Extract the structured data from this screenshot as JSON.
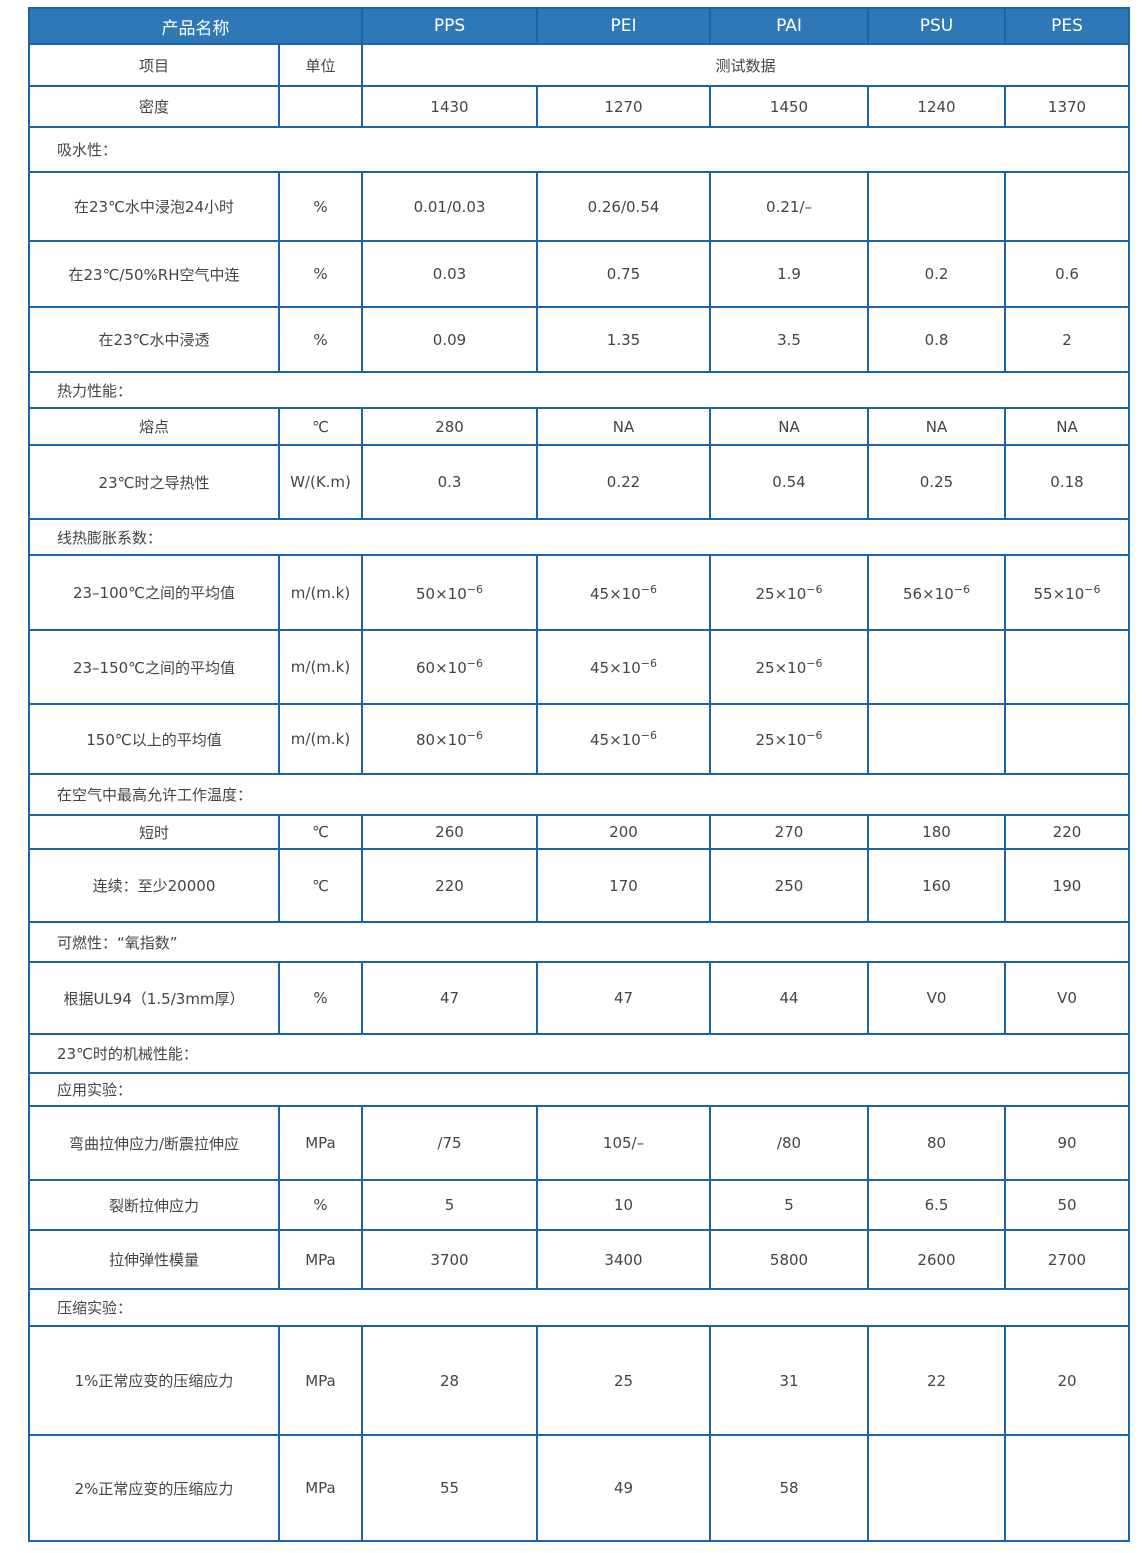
{
  "header": {
    "name_label": "产品名称",
    "materials": [
      "PPS",
      "PEI",
      "PAI",
      "PSU",
      "PES"
    ]
  },
  "subheader": {
    "item_label": "项目",
    "unit_label": "单位",
    "data_label": "测试数据"
  },
  "rows": [
    {
      "type": "data",
      "item": "密度",
      "unit": "",
      "values": [
        "1430",
        "1270",
        "1450",
        "1240",
        "1370"
      ]
    },
    {
      "type": "section",
      "label": "吸水性："
    },
    {
      "type": "data",
      "item": "在23℃水中浸泡24小时",
      "unit": "%",
      "values": [
        "0.01/0.03",
        "0.26/0.54",
        "0.21/–",
        "",
        ""
      ]
    },
    {
      "type": "data",
      "item": "在23℃/50%RH空气中连",
      "unit": "%",
      "values": [
        "0.03",
        "0.75",
        "1.9",
        "0.2",
        "0.6"
      ]
    },
    {
      "type": "data",
      "item": "在23℃水中浸透",
      "unit": "%",
      "values": [
        "0.09",
        "1.35",
        "3.5",
        "0.8",
        "2"
      ]
    },
    {
      "type": "section",
      "label": "热力性能："
    },
    {
      "type": "data",
      "item": "熔点",
      "unit": "℃",
      "values": [
        "280",
        "NA",
        "NA",
        "NA",
        "NA"
      ]
    },
    {
      "type": "data",
      "item": "23℃时之导热性",
      "unit": "W/(K.m)",
      "values": [
        "0.3",
        "0.22",
        "0.54",
        "0.25",
        "0.18"
      ]
    },
    {
      "type": "section",
      "label": "线热膨胀系数："
    },
    {
      "type": "data",
      "item": "23–100℃之间的平均值",
      "unit": "m/(m.k)",
      "values": [
        {
          "base": "50×10",
          "exp": "−6"
        },
        {
          "base": "45×10",
          "exp": "−6"
        },
        {
          "base": "25×10",
          "exp": "−6"
        },
        {
          "base": "56×10",
          "exp": "−6"
        },
        {
          "base": "55×10",
          "exp": "−6"
        }
      ]
    },
    {
      "type": "data",
      "item": "23–150℃之间的平均值",
      "unit": "m/(m.k)",
      "values": [
        {
          "base": "60×10",
          "exp": "−6"
        },
        {
          "base": "45×10",
          "exp": "−6"
        },
        {
          "base": "25×10",
          "exp": "−6"
        },
        "",
        ""
      ]
    },
    {
      "type": "data",
      "item": "150℃以上的平均值",
      "unit": "m/(m.k)",
      "values": [
        {
          "base": "80×10",
          "exp": "−6"
        },
        {
          "base": "45×10",
          "exp": "−6"
        },
        {
          "base": "25×10",
          "exp": "−6"
        },
        "",
        ""
      ]
    },
    {
      "type": "section",
      "label": "在空气中最高允许工作温度："
    },
    {
      "type": "data",
      "item": "短时",
      "unit": "℃",
      "values": [
        "260",
        "200",
        "270",
        "180",
        "220"
      ]
    },
    {
      "type": "data",
      "item": "连续：至少20000",
      "unit": "℃",
      "values": [
        "220",
        "170",
        "250",
        "160",
        "190"
      ]
    },
    {
      "type": "section",
      "label": "可燃性：“氧指数”"
    },
    {
      "type": "data",
      "item": "根据UL94（1.5/3mm厚）",
      "unit": "%",
      "values": [
        "47",
        "47",
        "44",
        "V0",
        "V0"
      ]
    },
    {
      "type": "section",
      "label": "23℃时的机械性能："
    },
    {
      "type": "section",
      "label": "应用实验："
    },
    {
      "type": "data",
      "item": "弯曲拉伸应力/断震拉伸应",
      "unit": "MPa",
      "values": [
        "/75",
        "105/–",
        "/80",
        "80",
        "90"
      ]
    },
    {
      "type": "data",
      "item": "裂断拉伸应力",
      "unit": "%",
      "values": [
        "5",
        "10",
        "5",
        "6.5",
        "50"
      ]
    },
    {
      "type": "data",
      "item": "拉伸弹性模量",
      "unit": "MPa",
      "values": [
        "3700",
        "3400",
        "5800",
        "2600",
        "2700"
      ]
    },
    {
      "type": "section",
      "label": "压缩实验："
    },
    {
      "type": "data",
      "item": "1%正常应变的压缩应力",
      "unit": "MPa",
      "values": [
        "28",
        "25",
        "31",
        "22",
        "20"
      ]
    },
    {
      "type": "data",
      "item": "2%正常应变的压缩应力",
      "unit": "MPa",
      "values": [
        "55",
        "49",
        "58",
        "",
        ""
      ]
    }
  ]
}
